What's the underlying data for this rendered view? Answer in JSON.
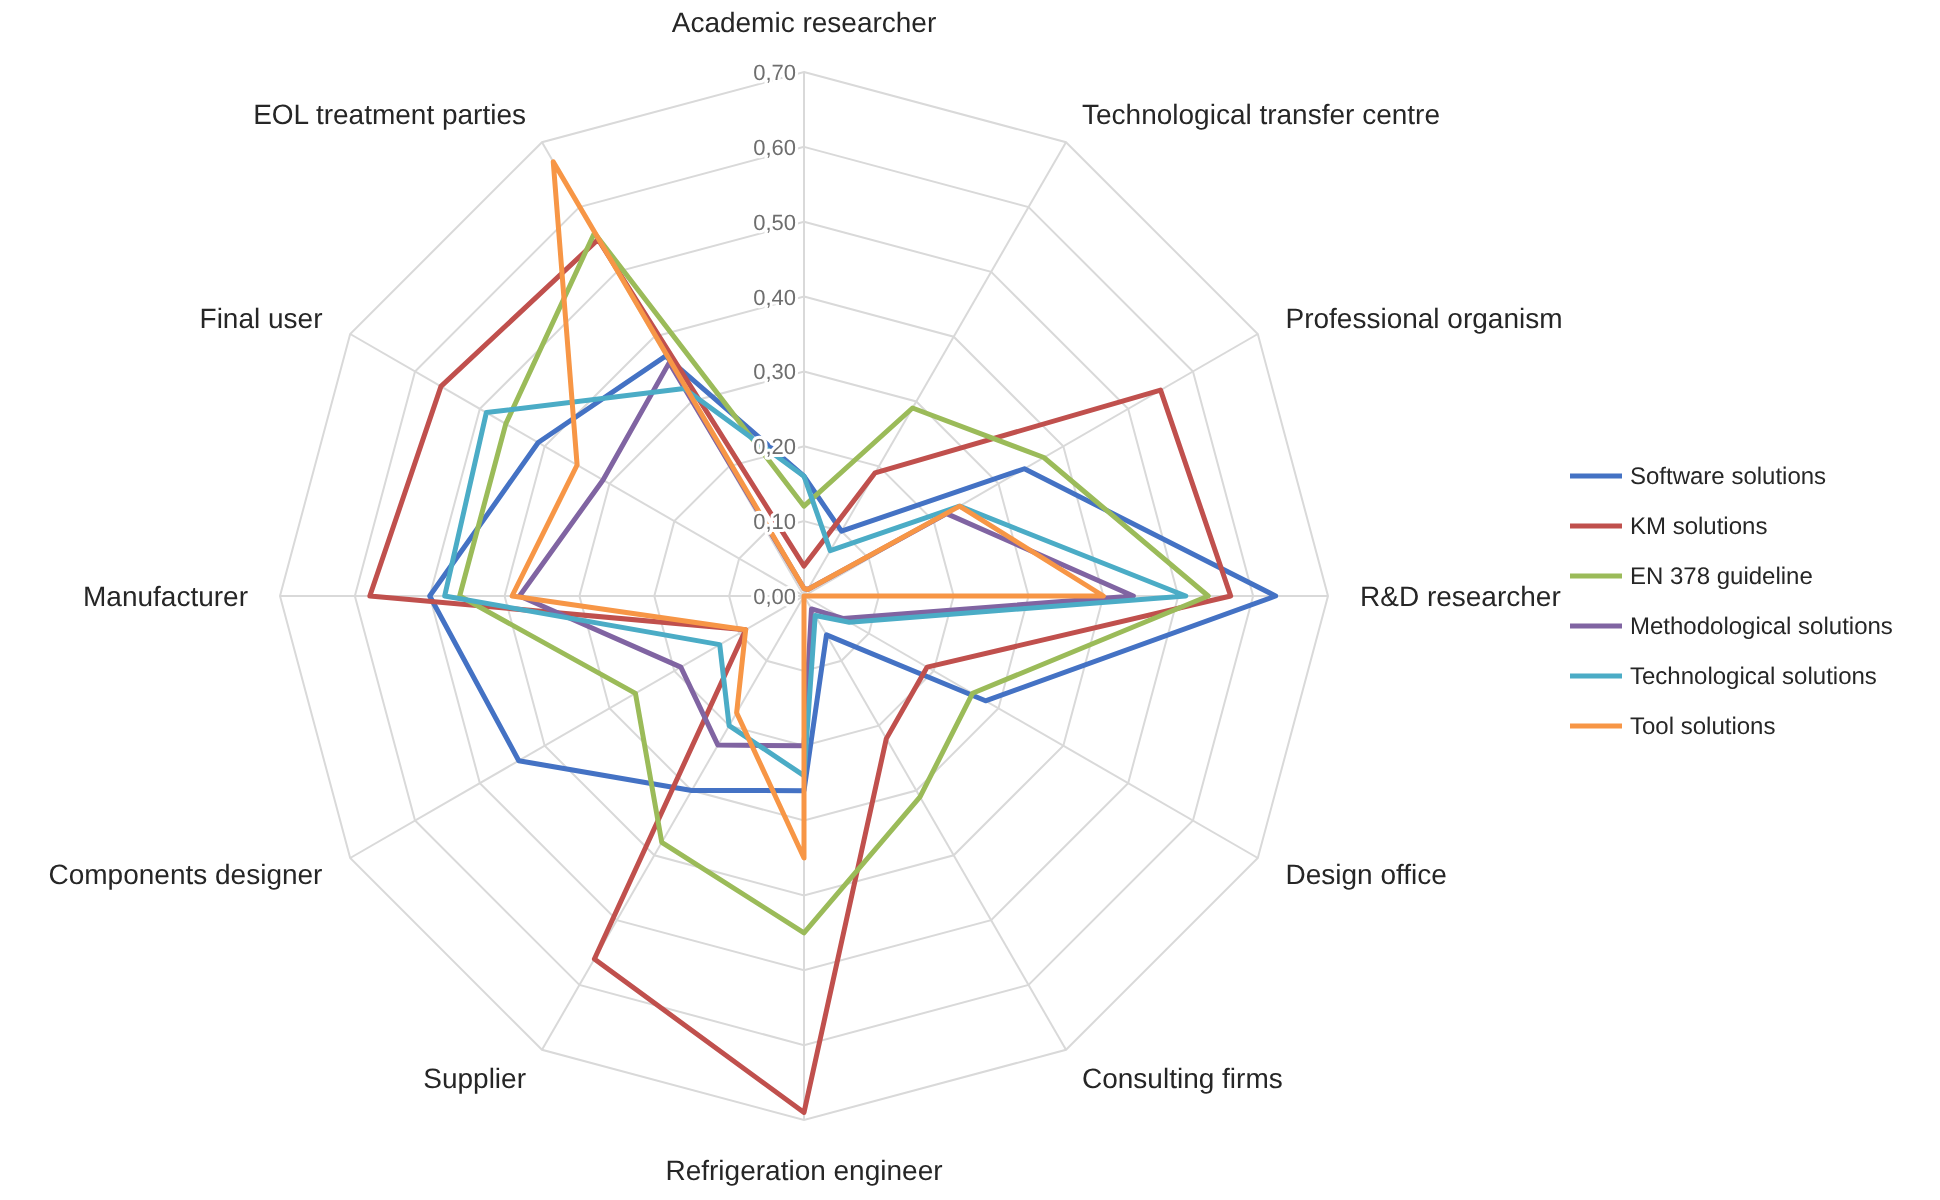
{
  "chart_data": {
    "type": "radar",
    "categories": [
      "Academic researcher",
      "Technological transfer centre",
      "Professional organism",
      "R&D researcher",
      "Design office",
      "Consulting firms",
      "Refrigeration engineer",
      "Supplier",
      "Components designer",
      "Manufacturer",
      "Final user",
      "EOL treatment parties"
    ],
    "ylim": [
      0,
      0.7
    ],
    "yticks": [
      {
        "value": 0,
        "label": "0,00"
      },
      {
        "value": 0.1,
        "label": "0,10"
      },
      {
        "value": 0.2,
        "label": "0,20"
      },
      {
        "value": 0.3,
        "label": "0,30"
      },
      {
        "value": 0.4,
        "label": "0,40"
      },
      {
        "value": 0.5,
        "label": "0,50"
      },
      {
        "value": 0.6,
        "label": "0,60"
      },
      {
        "value": 0.7,
        "label": "0,70"
      }
    ],
    "grid": true,
    "legend": "right",
    "marker": "none",
    "series": [
      {
        "name": "Software solutions",
        "color": "#4472c4",
        "values": [
          0.16,
          0.1,
          0.34,
          0.63,
          0.28,
          0.06,
          0.26,
          0.3,
          0.44,
          0.5,
          0.41,
          0.37
        ]
      },
      {
        "name": "KM solutions",
        "color": "#c0504d",
        "values": [
          0.04,
          0.19,
          0.55,
          0.57,
          0.19,
          0.22,
          0.69,
          0.56,
          0.09,
          0.58,
          0.56,
          0.55
        ]
      },
      {
        "name": "EN 378 guideline",
        "color": "#9bbb59",
        "values": [
          0.12,
          0.29,
          0.37,
          0.54,
          0.26,
          0.31,
          0.45,
          0.38,
          0.26,
          0.46,
          0.46,
          0.56
        ]
      },
      {
        "name": "Methodological solutions",
        "color": "#8064a2",
        "values": [
          0.01,
          0.01,
          0.22,
          0.44,
          0.06,
          0.02,
          0.2,
          0.23,
          0.19,
          0.38,
          0.31,
          0.36
        ]
      },
      {
        "name": "Technological solutions",
        "color": "#4bacc6",
        "values": [
          0.16,
          0.07,
          0.24,
          0.51,
          0.07,
          0.03,
          0.24,
          0.2,
          0.13,
          0.48,
          0.49,
          0.32
        ]
      },
      {
        "name": "Tool solutions",
        "color": "#f79646",
        "values": [
          0.01,
          0.01,
          0.24,
          0.4,
          0,
          0,
          0.35,
          0.18,
          0.09,
          0.39,
          0.35,
          0.67
        ]
      }
    ]
  }
}
